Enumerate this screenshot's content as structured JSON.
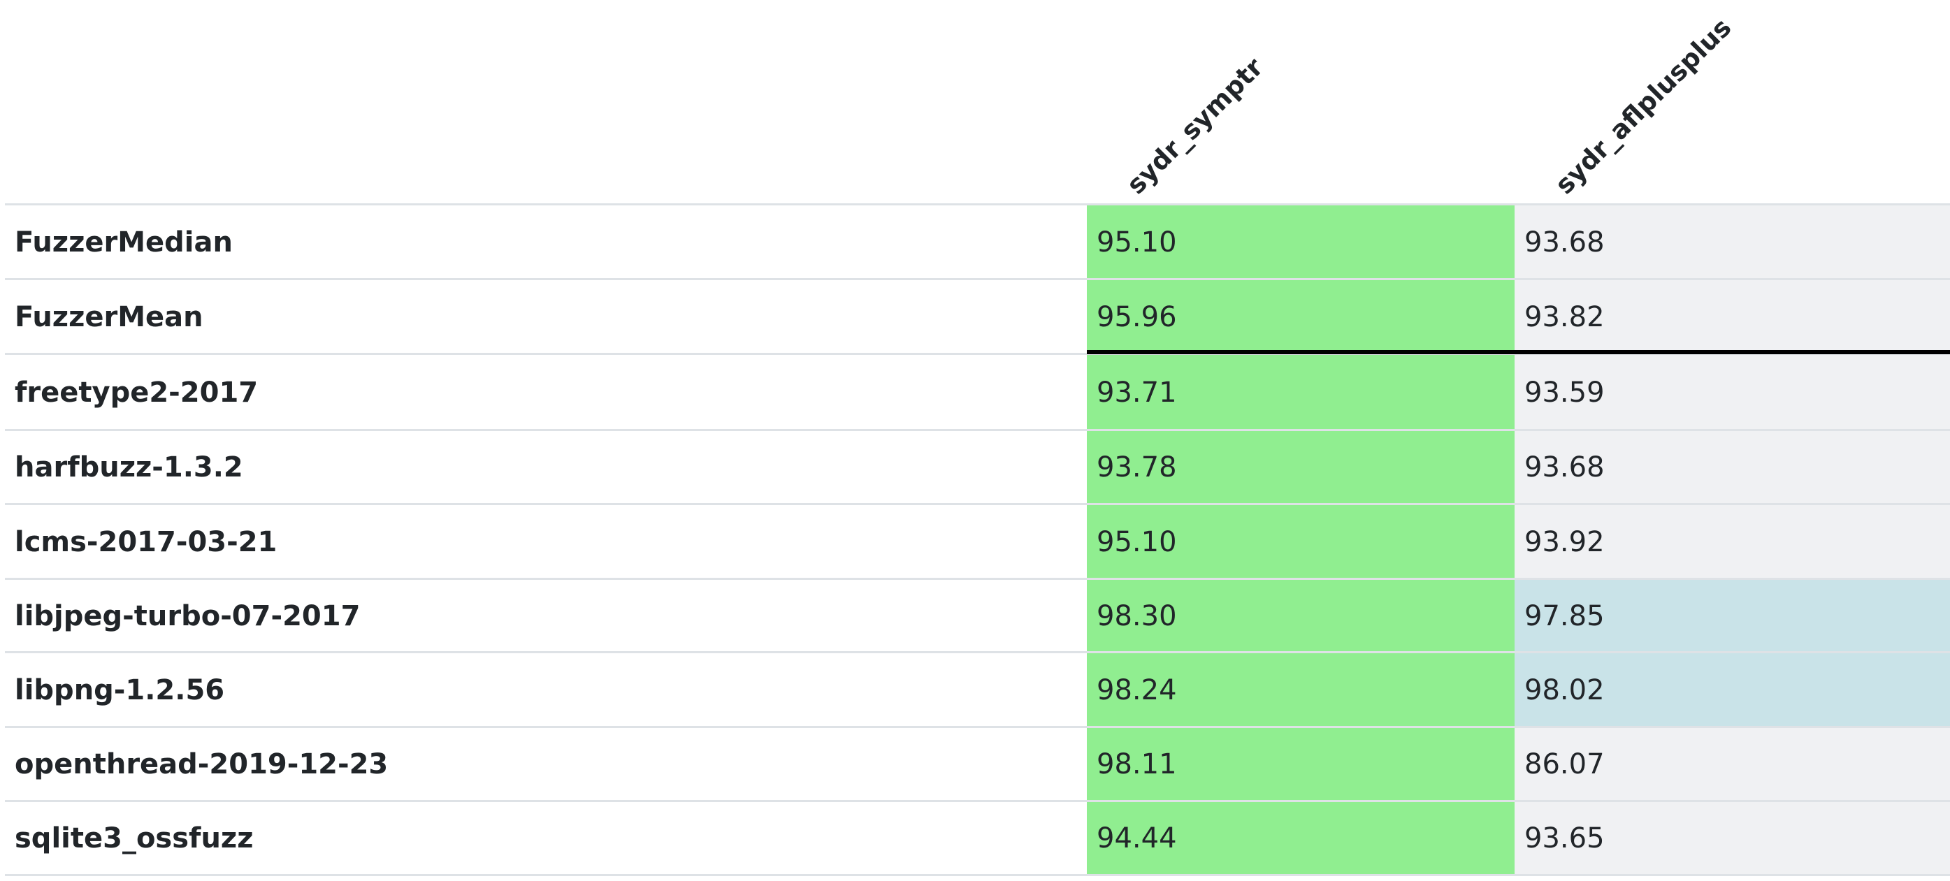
{
  "chart_data": {
    "type": "table",
    "columns": [
      "sydr_symptr",
      "sydr_aflplusplus"
    ],
    "rows": [
      {
        "label": "FuzzerMedian",
        "values": [
          "95.10",
          "93.68"
        ],
        "colors": [
          "#90ee90",
          "#f0f1f3"
        ]
      },
      {
        "label": "FuzzerMean",
        "values": [
          "95.96",
          "93.82"
        ],
        "colors": [
          "#90ee90",
          "#f0f1f3"
        ]
      },
      {
        "label": "freetype2-2017",
        "values": [
          "93.71",
          "93.59"
        ],
        "colors": [
          "#90ee90",
          "#f0f1f3"
        ]
      },
      {
        "label": "harfbuzz-1.3.2",
        "values": [
          "93.78",
          "93.68"
        ],
        "colors": [
          "#90ee90",
          "#f0f1f3"
        ]
      },
      {
        "label": "lcms-2017-03-21",
        "values": [
          "95.10",
          "93.92"
        ],
        "colors": [
          "#90ee90",
          "#f0f1f3"
        ]
      },
      {
        "label": "libjpeg-turbo-07-2017",
        "values": [
          "98.30",
          "97.85"
        ],
        "colors": [
          "#90ee90",
          "#c9e3e8"
        ]
      },
      {
        "label": "libpng-1.2.56",
        "values": [
          "98.24",
          "98.02"
        ],
        "colors": [
          "#90ee90",
          "#c9e3e8"
        ]
      },
      {
        "label": "openthread-2019-12-23",
        "values": [
          "98.11",
          "86.07"
        ],
        "colors": [
          "#90ee90",
          "#f0f1f3"
        ]
      },
      {
        "label": "sqlite3_ossfuzz",
        "values": [
          "94.44",
          "93.65"
        ],
        "colors": [
          "#90ee90",
          "#f0f1f3"
        ]
      }
    ]
  }
}
